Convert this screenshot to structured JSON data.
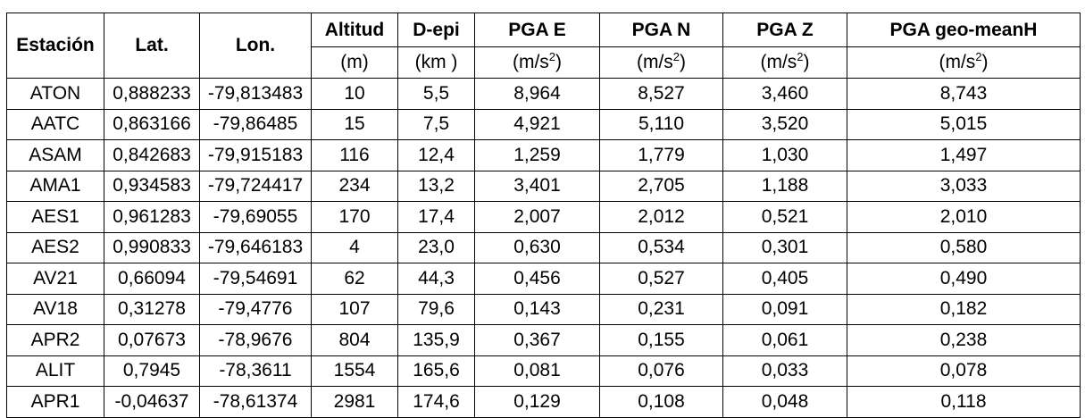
{
  "table": {
    "header": {
      "estacion": "Estación",
      "lat": "Lat.",
      "lon": "Lon.",
      "altitud": "Altitud",
      "altitud_unit": "(m)",
      "depi": "D-epi",
      "depi_unit": "(km )",
      "pga_e": "PGA E",
      "pga_n": "PGA N",
      "pga_z": "PGA Z",
      "pga_geo": "PGA geo-meanH",
      "accel_unit_base": "(m/s",
      "accel_unit_exp": "2",
      "accel_unit_close": ")"
    },
    "rows": [
      {
        "estacion": "ATON",
        "lat": "0,888233",
        "lon": "-79,813483",
        "altitud": "10",
        "depi": "5,5",
        "pga_e": "8,964",
        "pga_n": "8,527",
        "pga_z": "3,460",
        "pga_geo": "8,743"
      },
      {
        "estacion": "AATC",
        "lat": "0,863166",
        "lon": "-79,86485",
        "altitud": "15",
        "depi": "7,5",
        "pga_e": "4,921",
        "pga_n": "5,110",
        "pga_z": "3,520",
        "pga_geo": "5,015"
      },
      {
        "estacion": "ASAM",
        "lat": "0,842683",
        "lon": "-79,915183",
        "altitud": "116",
        "depi": "12,4",
        "pga_e": "1,259",
        "pga_n": "1,779",
        "pga_z": "1,030",
        "pga_geo": "1,497"
      },
      {
        "estacion": "AMA1",
        "lat": "0,934583",
        "lon": "-79,724417",
        "altitud": "234",
        "depi": "13,2",
        "pga_e": "3,401",
        "pga_n": "2,705",
        "pga_z": "1,188",
        "pga_geo": "3,033"
      },
      {
        "estacion": "AES1",
        "lat": "0,961283",
        "lon": "-79,69055",
        "altitud": "170",
        "depi": "17,4",
        "pga_e": "2,007",
        "pga_n": "2,012",
        "pga_z": "0,521",
        "pga_geo": "2,010"
      },
      {
        "estacion": "AES2",
        "lat": "0,990833",
        "lon": "-79,646183",
        "altitud": "4",
        "depi": "23,0",
        "pga_e": "0,630",
        "pga_n": "0,534",
        "pga_z": "0,301",
        "pga_geo": "0,580"
      },
      {
        "estacion": "AV21",
        "lat": "0,66094",
        "lon": "-79,54691",
        "altitud": "62",
        "depi": "44,3",
        "pga_e": "0,456",
        "pga_n": "0,527",
        "pga_z": "0,405",
        "pga_geo": "0,490"
      },
      {
        "estacion": "AV18",
        "lat": "0,31278",
        "lon": "-79,4776",
        "altitud": "107",
        "depi": "79,6",
        "pga_e": "0,143",
        "pga_n": "0,231",
        "pga_z": "0,091",
        "pga_geo": "0,182"
      },
      {
        "estacion": "APR2",
        "lat": "0,07673",
        "lon": "-78,9676",
        "altitud": "804",
        "depi": "135,9",
        "pga_e": "0,367",
        "pga_n": "0,155",
        "pga_z": "0,061",
        "pga_geo": "0,238"
      },
      {
        "estacion": "ALIT",
        "lat": "0,7945",
        "lon": "-78,3611",
        "altitud": "1554",
        "depi": "165,6",
        "pga_e": "0,081",
        "pga_n": "0,076",
        "pga_z": "0,033",
        "pga_geo": "0,078"
      },
      {
        "estacion": "APR1",
        "lat": "-0,04637",
        "lon": "-78,61374",
        "altitud": "2981",
        "depi": "174,6",
        "pga_e": "0,129",
        "pga_n": "0,108",
        "pga_z": "0,048",
        "pga_geo": "0,118"
      }
    ]
  }
}
